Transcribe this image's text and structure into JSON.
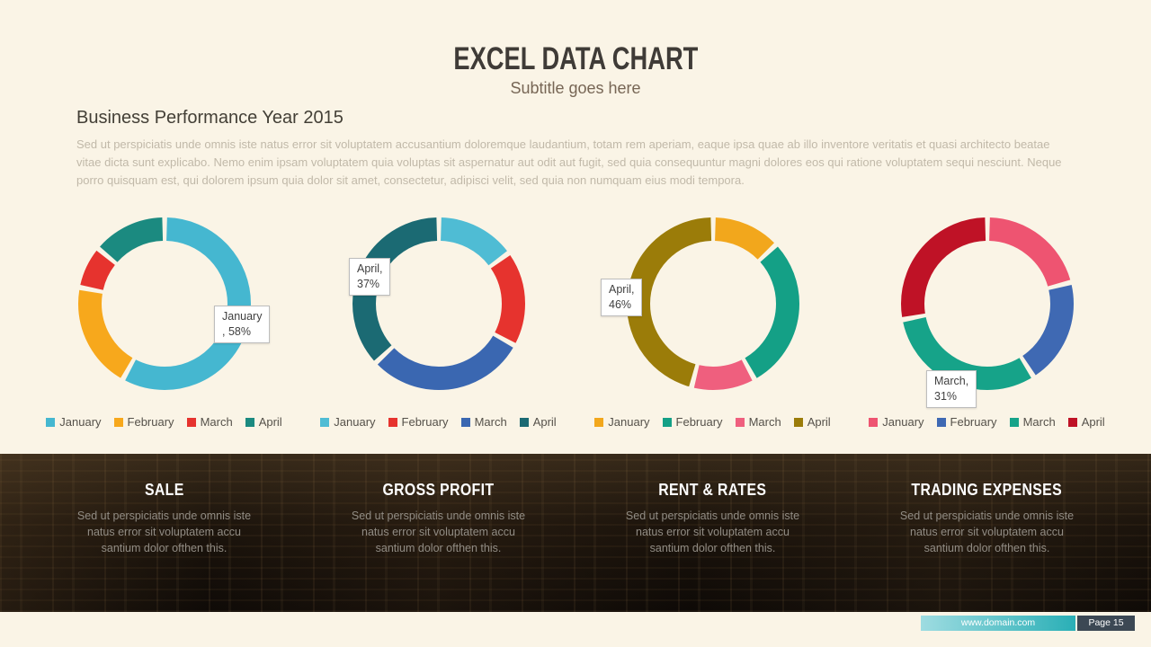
{
  "slide": {
    "title": "EXCEL DATA CHART",
    "subtitle": "Subtitle goes here",
    "section_heading": "Business Performance Year 2015",
    "body_text": "Sed ut perspiciatis unde omnis iste natus error sit voluptatem accusantium doloremque laudantium, totam rem aperiam, eaque ipsa quae ab illo inventore veritatis et quasi architecto beatae vitae dicta sunt explicabo. Nemo enim ipsam voluptatem quia voluptas sit aspernatur aut odit aut fugit, sed quia consequuntur magni dolores eos qui ratione voluptatem sequi nesciunt. Neque porro quisquam est, qui dolorem ipsum quia dolor sit amet, consectetur, adipisci velit, sed quia non numquam eius modi tempora."
  },
  "chart_data": [
    {
      "type": "pie",
      "subtype": "donut",
      "categories": [
        "January",
        "February",
        "March",
        "April"
      ],
      "values": [
        58,
        20,
        8,
        14
      ],
      "colors": [
        "#45b7d0",
        "#f7a81c",
        "#e6332e",
        "#1b8a80"
      ],
      "legend_position": "bottom",
      "callout": [
        "January",
        ", 58%"
      ],
      "callout_meaning": "January, 58%"
    },
    {
      "type": "pie",
      "subtype": "donut",
      "categories": [
        "January",
        "February",
        "March",
        "April"
      ],
      "values": [
        15,
        18,
        30,
        37
      ],
      "colors": [
        "#4fbcd4",
        "#e6332e",
        "#3a67b1",
        "#1b6a73"
      ],
      "legend_position": "bottom",
      "callout": [
        "April,",
        "37%"
      ],
      "callout_meaning": "April, 37%"
    },
    {
      "type": "pie",
      "subtype": "donut",
      "categories": [
        "January",
        "February",
        "March",
        "April"
      ],
      "values": [
        13,
        29,
        12,
        46
      ],
      "colors": [
        "#f2a71c",
        "#14a086",
        "#ef5f7e",
        "#9b7c09"
      ],
      "legend_position": "bottom",
      "callout": [
        "April,",
        "46%"
      ],
      "callout_meaning": "April, 46%"
    },
    {
      "type": "pie",
      "subtype": "donut",
      "categories": [
        "January",
        "February",
        "March",
        "April"
      ],
      "values": [
        21,
        20,
        31,
        28
      ],
      "colors": [
        "#ee5471",
        "#3f69b3",
        "#16a389",
        "#bf1226"
      ],
      "legend_position": "bottom",
      "callout": [
        "March,",
        "31%"
      ],
      "callout_meaning": "March, 31%"
    }
  ],
  "features": [
    {
      "title": "SALE",
      "text": "Sed ut perspiciatis unde omnis iste natus error sit voluptatem accu santium dolor ofthen this."
    },
    {
      "title": "GROSS PROFIT",
      "text": "Sed ut perspiciatis unde omnis iste natus error sit voluptatem accu santium dolor ofthen this."
    },
    {
      "title": "RENT & RATES",
      "text": "Sed ut perspiciatis unde omnis iste natus error sit voluptatem accu santium dolor ofthen this."
    },
    {
      "title": "TRADING EXPENSES",
      "text": "Sed ut perspiciatis unde omnis iste natus error sit voluptatem accu santium dolor ofthen this."
    }
  ],
  "footer": {
    "website": "www.domain.com",
    "page_label": "Page 15"
  }
}
